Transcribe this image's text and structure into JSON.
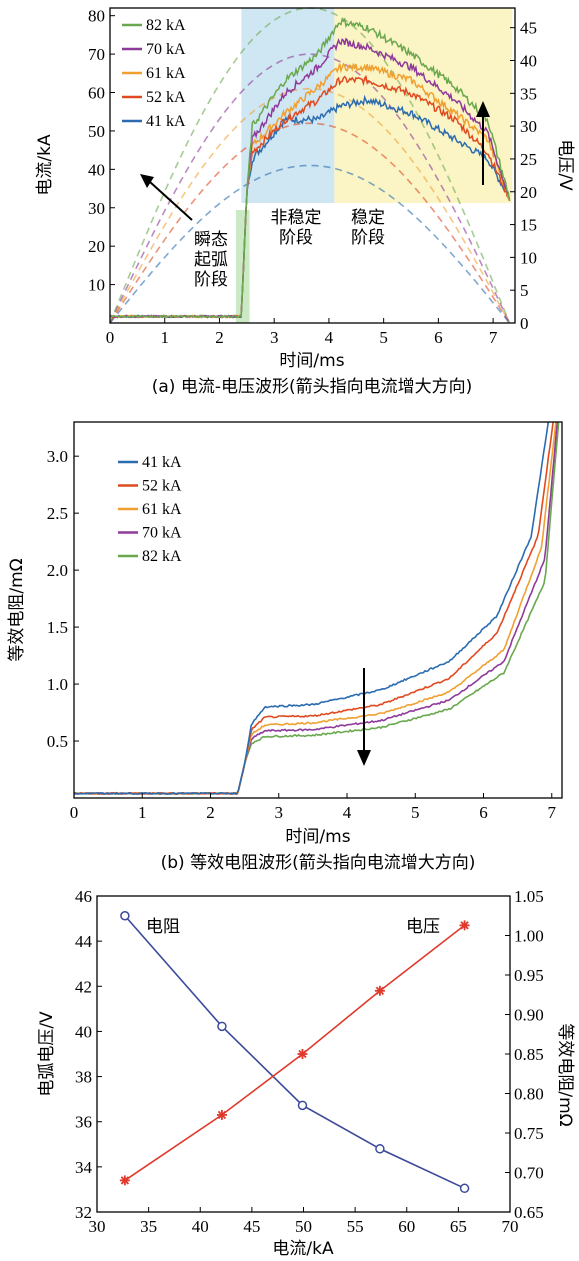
{
  "chart_data": [
    {
      "type": "line",
      "caption": "(a) 电流-电压波形(箭头指向电流增大方向)",
      "xlabel": "时间/ms",
      "ylabel": "电流/kA",
      "y2label": "电压/V",
      "xlim": [
        0,
        7.4
      ],
      "ylim": [
        0,
        82
      ],
      "y2lim": [
        0,
        48
      ],
      "xticks": [
        "0",
        "1",
        "2",
        "3",
        "4",
        "5",
        "6",
        "7"
      ],
      "yticks": [
        "10",
        "20",
        "30",
        "40",
        "50",
        "60",
        "70",
        "80"
      ],
      "y2ticks": [
        "0",
        "5",
        "10",
        "15",
        "20",
        "25",
        "30",
        "35",
        "40",
        "45"
      ],
      "regions": [
        {
          "label": "瞬态起弧阶段",
          "lines": [
            "瞬态",
            "起弧",
            "阶段"
          ],
          "x": [
            2.3,
            2.55
          ],
          "color": "#cce9c6"
        },
        {
          "label": "非稳定阶段",
          "lines": [
            "非稳定",
            "阶段"
          ],
          "x": [
            2.4,
            4.1
          ],
          "color": "#cfe6f3"
        },
        {
          "label": "稳定阶段",
          "lines": [
            "稳定",
            "阶段"
          ],
          "x": [
            4.1,
            7.35
          ],
          "color": "#fbf4c4"
        }
      ],
      "series": [
        {
          "name": "82 kA",
          "color": "#6aa84f",
          "current_peak": 82,
          "voltage": [
            [
              0,
              1
            ],
            [
              2.4,
              1
            ],
            [
              2.5,
              20
            ],
            [
              2.6,
              30
            ],
            [
              3.2,
              37
            ],
            [
              3.8,
              41
            ],
            [
              4.2,
              46
            ],
            [
              4.7,
              45
            ],
            [
              5.5,
              41
            ],
            [
              6.3,
              36
            ],
            [
              6.9,
              31
            ],
            [
              7.3,
              19
            ]
          ]
        },
        {
          "name": "70 kA",
          "color": "#8e3a9a",
          "current_peak": 70,
          "voltage": [
            [
              0,
              1
            ],
            [
              2.4,
              1
            ],
            [
              2.5,
              20
            ],
            [
              2.6,
              28
            ],
            [
              3.2,
              35
            ],
            [
              3.8,
              39
            ],
            [
              4.2,
              43
            ],
            [
              4.7,
              42
            ],
            [
              5.5,
              39
            ],
            [
              6.3,
              34
            ],
            [
              6.9,
              29
            ],
            [
              7.3,
              19
            ]
          ]
        },
        {
          "name": "61 kA",
          "color": "#f0a030",
          "current_peak": 61,
          "voltage": [
            [
              0,
              1
            ],
            [
              2.4,
              1
            ],
            [
              2.5,
              20
            ],
            [
              2.6,
              27
            ],
            [
              3.2,
              32
            ],
            [
              3.8,
              36
            ],
            [
              4.2,
              39
            ],
            [
              4.7,
              39
            ],
            [
              5.5,
              37
            ],
            [
              6.3,
              32
            ],
            [
              6.9,
              28
            ],
            [
              7.3,
              19
            ]
          ]
        },
        {
          "name": "52 kA",
          "color": "#e04a20",
          "current_peak": 52,
          "voltage": [
            [
              0,
              1
            ],
            [
              2.4,
              1
            ],
            [
              2.5,
              20
            ],
            [
              2.6,
              26
            ],
            [
              3.2,
              31
            ],
            [
              3.8,
              34
            ],
            [
              4.2,
              37
            ],
            [
              4.7,
              37
            ],
            [
              5.5,
              35
            ],
            [
              6.3,
              31
            ],
            [
              6.9,
              26
            ],
            [
              7.3,
              19
            ]
          ]
        },
        {
          "name": "41 kA",
          "color": "#2b6cb0",
          "current_peak": 41,
          "voltage": [
            [
              0,
              1
            ],
            [
              2.4,
              1
            ],
            [
              2.5,
              20
            ],
            [
              2.6,
              25
            ],
            [
              3.2,
              31
            ],
            [
              3.8,
              31
            ],
            [
              4.2,
              33
            ],
            [
              4.7,
              34
            ],
            [
              5.5,
              32
            ],
            [
              6.3,
              28
            ],
            [
              6.9,
              25
            ],
            [
              7.3,
              19
            ]
          ]
        }
      ]
    },
    {
      "type": "line",
      "caption": "(b) 等效电阻波形(箭头指向电流增大方向)",
      "xlabel": "时间/ms",
      "ylabel": "等效电阻/mΩ",
      "xlim": [
        0,
        7.15
      ],
      "ylim": [
        0,
        3.3
      ],
      "xticks": [
        "0",
        "1",
        "2",
        "3",
        "4",
        "5",
        "6",
        "7"
      ],
      "yticks": [
        "0.5",
        "1.0",
        "1.5",
        "2.0",
        "2.5",
        "3.0"
      ],
      "series": [
        {
          "name": "41 kA",
          "color": "#2b6cb0",
          "points": [
            [
              0,
              0.04
            ],
            [
              2.4,
              0.04
            ],
            [
              2.5,
              0.3
            ],
            [
              2.6,
              0.65
            ],
            [
              2.8,
              0.8
            ],
            [
              3.5,
              0.82
            ],
            [
              4.5,
              0.95
            ],
            [
              5.5,
              1.2
            ],
            [
              6.2,
              1.6
            ],
            [
              6.7,
              2.3
            ],
            [
              6.95,
              3.3
            ]
          ]
        },
        {
          "name": "52 kA",
          "color": "#e04a20",
          "points": [
            [
              0,
              0.04
            ],
            [
              2.4,
              0.04
            ],
            [
              2.5,
              0.3
            ],
            [
              2.6,
              0.6
            ],
            [
              2.8,
              0.71
            ],
            [
              3.5,
              0.72
            ],
            [
              4.5,
              0.82
            ],
            [
              5.5,
              1.05
            ],
            [
              6.2,
              1.45
            ],
            [
              6.8,
              2.3
            ],
            [
              7.02,
              3.3
            ]
          ]
        },
        {
          "name": "61 kA",
          "color": "#f0a030",
          "points": [
            [
              0,
              0.04
            ],
            [
              2.4,
              0.04
            ],
            [
              2.5,
              0.3
            ],
            [
              2.6,
              0.56
            ],
            [
              2.8,
              0.64
            ],
            [
              3.5,
              0.66
            ],
            [
              4.5,
              0.74
            ],
            [
              5.5,
              0.93
            ],
            [
              6.3,
              1.3
            ],
            [
              6.85,
              2.2
            ],
            [
              7.06,
              3.3
            ]
          ]
        },
        {
          "name": "70 kA",
          "color": "#8e3a9a",
          "points": [
            [
              0,
              0.04
            ],
            [
              2.4,
              0.04
            ],
            [
              2.5,
              0.3
            ],
            [
              2.6,
              0.52
            ],
            [
              2.8,
              0.59
            ],
            [
              3.5,
              0.6
            ],
            [
              4.5,
              0.68
            ],
            [
              5.5,
              0.86
            ],
            [
              6.3,
              1.2
            ],
            [
              6.9,
              2.1
            ],
            [
              7.08,
              3.3
            ]
          ]
        },
        {
          "name": "82 kA",
          "color": "#6aa84f",
          "points": [
            [
              0,
              0.04
            ],
            [
              2.4,
              0.04
            ],
            [
              2.5,
              0.3
            ],
            [
              2.6,
              0.48
            ],
            [
              2.8,
              0.54
            ],
            [
              3.5,
              0.55
            ],
            [
              4.5,
              0.62
            ],
            [
              5.5,
              0.78
            ],
            [
              6.3,
              1.1
            ],
            [
              6.9,
              1.9
            ],
            [
              7.1,
              3.3
            ]
          ]
        }
      ]
    },
    {
      "type": "line",
      "xlabel": "电流/kA",
      "ylabel": "电弧电压/V",
      "y2label": "等效电阻/mΩ",
      "xlim": [
        30,
        70
      ],
      "ylim": [
        32,
        46
      ],
      "y2lim": [
        0.65,
        1.05
      ],
      "xticks": [
        "30",
        "35",
        "40",
        "45",
        "50",
        "55",
        "60",
        "65",
        "70"
      ],
      "yticks": [
        "32",
        "34",
        "36",
        "38",
        "40",
        "42",
        "44",
        "46"
      ],
      "y2ticks": [
        "0.65",
        "0.70",
        "0.75",
        "0.80",
        "0.85",
        "0.90",
        "0.95",
        "1.00",
        "1.05"
      ],
      "series": [
        {
          "name": "电阻",
          "axis": "right",
          "color": "#3b4a9a",
          "marker": "circle",
          "x": [
            32.7,
            42.1,
            49.9,
            57.4,
            65.6
          ],
          "y": [
            1.025,
            0.885,
            0.785,
            0.73,
            0.68
          ]
        },
        {
          "name": "电压",
          "axis": "left",
          "color": "#e0392b",
          "marker": "star",
          "x": [
            32.7,
            42.1,
            49.9,
            57.4,
            65.6
          ],
          "y": [
            33.4,
            36.3,
            39.0,
            41.8,
            44.7
          ]
        }
      ]
    }
  ]
}
